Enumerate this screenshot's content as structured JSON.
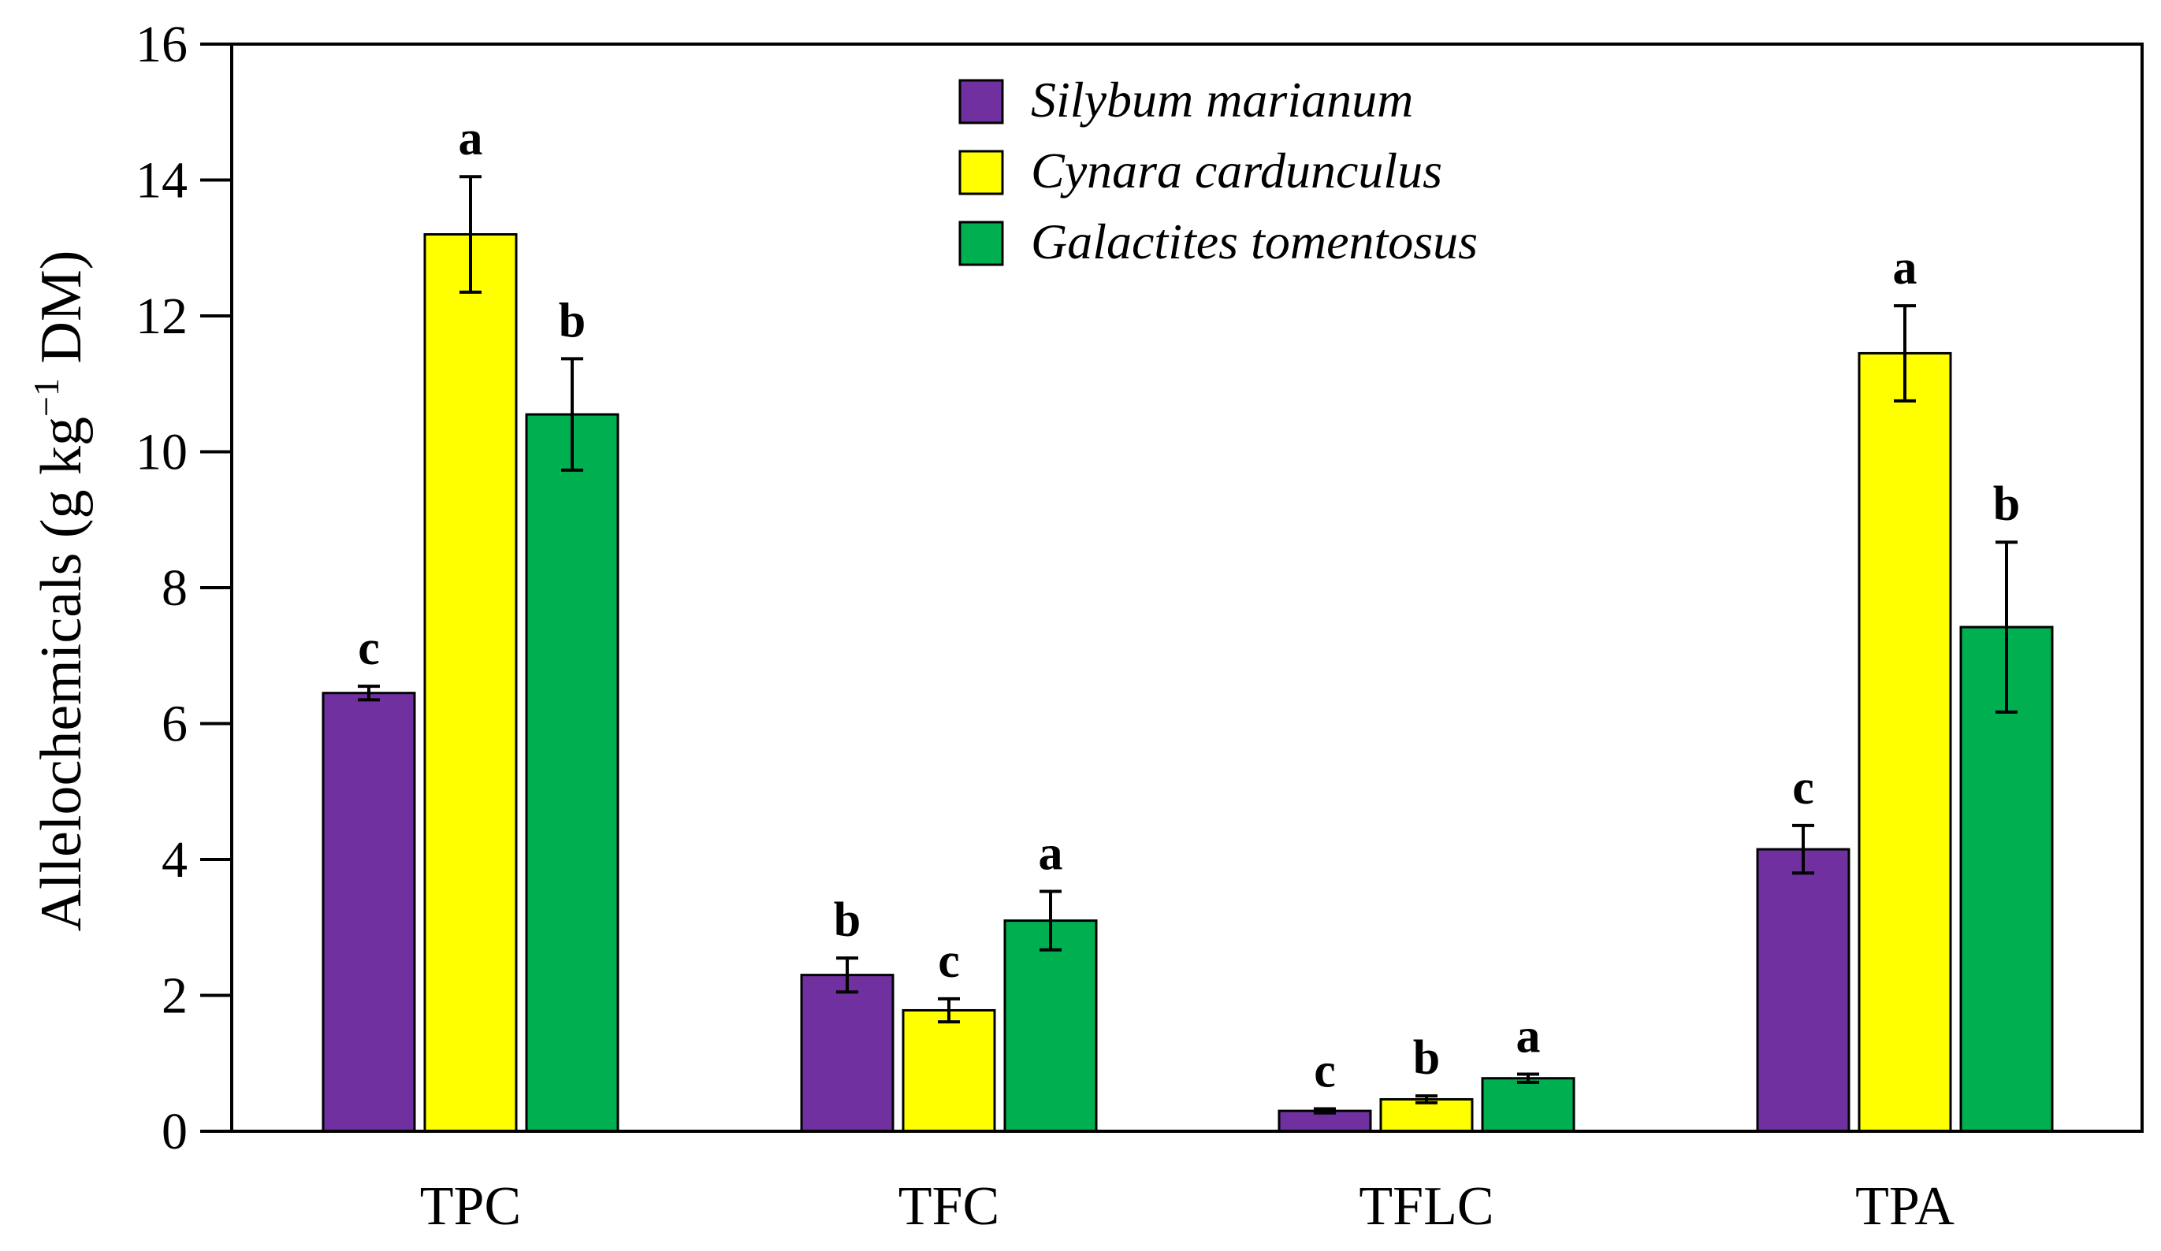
{
  "chart_data": {
    "type": "bar",
    "title": "",
    "xlabel": "",
    "ylabel": {
      "prefix": "Allelochemicals  (g kg",
      "superscript": "−1",
      "suffix": " DM)"
    },
    "ylim": [
      0,
      16
    ],
    "yticks": [
      "0",
      "2",
      "4",
      "6",
      "8",
      "10",
      "12",
      "14",
      "16"
    ],
    "categories": [
      "TPC",
      "TFC",
      "TFLC",
      "TPA"
    ],
    "series": [
      {
        "name": "Silybum marianum",
        "color": "#7030a0",
        "values": [
          6.45,
          2.3,
          0.3,
          4.15
        ],
        "errors": [
          0.1,
          0.25,
          0.03,
          0.35
        ],
        "letters": [
          "c",
          "b",
          "c",
          "c"
        ]
      },
      {
        "name": "Cynara cardunculus",
        "color": "#ffff00",
        "values": [
          13.2,
          1.78,
          0.47,
          11.45
        ],
        "errors": [
          0.85,
          0.17,
          0.05,
          0.7
        ],
        "letters": [
          "a",
          "c",
          "b",
          "a"
        ]
      },
      {
        "name": "Galactites tomentosus",
        "color": "#00b050",
        "values": [
          10.55,
          3.1,
          0.78,
          7.42
        ],
        "errors": [
          0.82,
          0.43,
          0.06,
          1.25
        ],
        "letters": [
          "b",
          "a",
          "a",
          "b"
        ]
      }
    ],
    "legend_position": "top-center"
  }
}
